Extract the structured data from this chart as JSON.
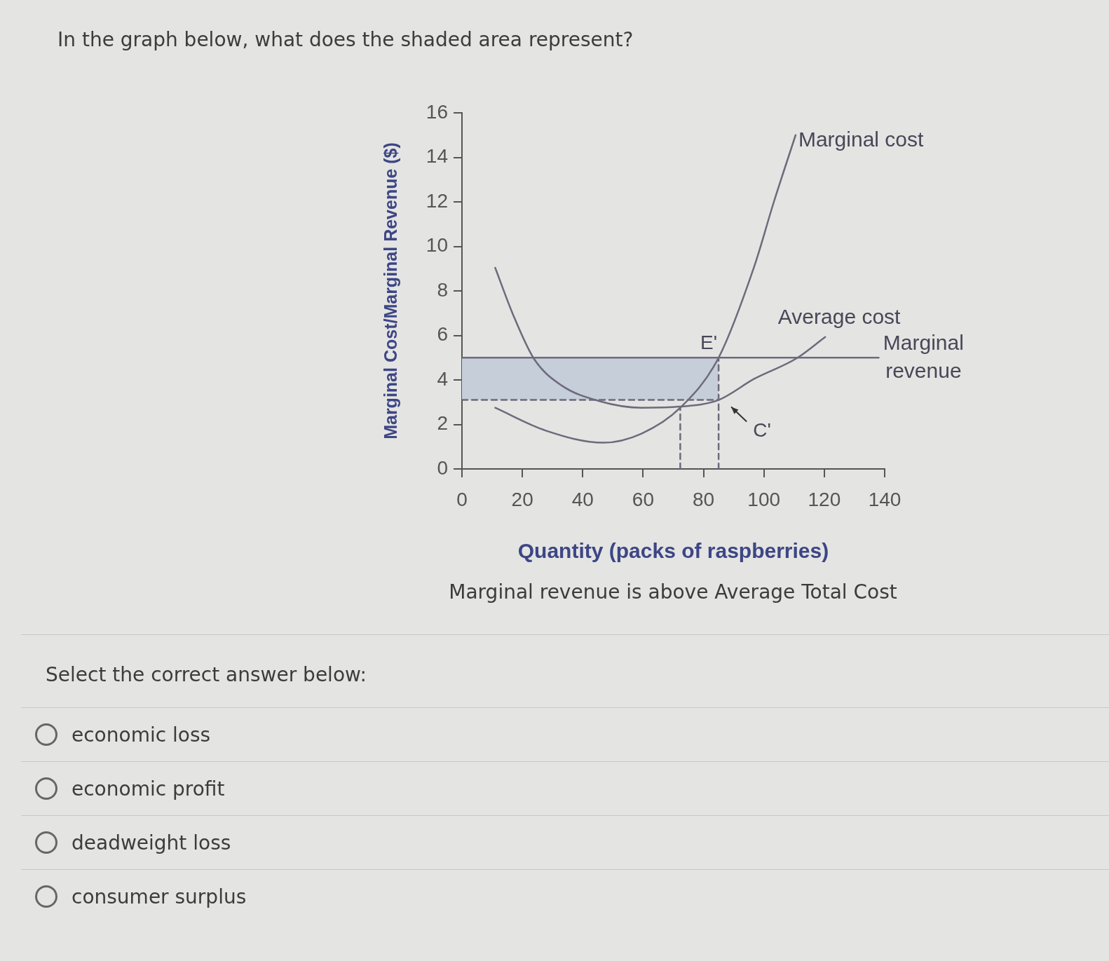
{
  "chart_data": {
    "type": "line",
    "title": "In the graph below, what does the shaded area represent?",
    "xlabel": "Quantity (packs of raspberries)",
    "ylabel": "Marginal Cost/Marginal Revenue ($)",
    "xlim": [
      0,
      140
    ],
    "xticks": [
      0,
      20,
      40,
      60,
      80,
      100,
      120,
      140
    ],
    "ylim": [
      0,
      16
    ],
    "yticks": [
      0,
      2,
      4,
      6,
      8,
      10,
      12,
      14,
      16
    ],
    "grid": false,
    "legend": false,
    "marker": "none",
    "line_style": "solid",
    "series": [
      {
        "type": "area",
        "color": "#c6ced9",
        "x": [
          0,
          85
        ],
        "values": [
          5,
          5
        ]
      },
      {
        "color": "#6e6a7c",
        "line_style": "dashed",
        "x": [
          0,
          85
        ],
        "values": [
          3.1,
          3.1
        ]
      },
      {
        "name": "Marginal cost",
        "color": "#6e6a7c",
        "x": [
          11,
          27.6,
          46.8,
          59.5,
          72.3,
          85,
          96.8,
          103.3,
          110.5
        ],
        "values": [
          2.75,
          1.73,
          1.18,
          1.59,
          2.75,
          5,
          9.1,
          12,
          15
        ]
      },
      {
        "name": "Average cost",
        "color": "#6e6a7c",
        "x": [
          11,
          16.9,
          23.8,
          32.9,
          45.7,
          59.5,
          72.3,
          85,
          96.8,
          110.7,
          120.3
        ],
        "values": [
          9.04,
          6.94,
          4.96,
          3.76,
          3.04,
          2.75,
          2.8,
          3.1,
          4.05,
          4.96,
          5.93
        ]
      },
      {
        "name": "Marginal revenue",
        "color": "#6e6a7c",
        "x": [
          0,
          138
        ],
        "values": [
          5,
          5
        ]
      },
      {
        "color": "#6e6a7c",
        "line_style": "dashed",
        "x": [
          85,
          85
        ],
        "values": [
          0,
          5
        ]
      },
      {
        "color": "#6e6a7c",
        "line_style": "dashed",
        "x": [
          72.3,
          72.3
        ],
        "values": [
          0,
          2.75
        ]
      }
    ],
    "annotations": [
      {
        "text": "E'",
        "x": 85,
        "y": 5
      },
      {
        "text": "C'",
        "x": 85,
        "y": 3.1
      },
      "Marginal revenue is above Average Total Cost",
      "Select the correct answer below:",
      "economic loss",
      "economic profit",
      "deadweight loss",
      "consumer surplus"
    ]
  }
}
